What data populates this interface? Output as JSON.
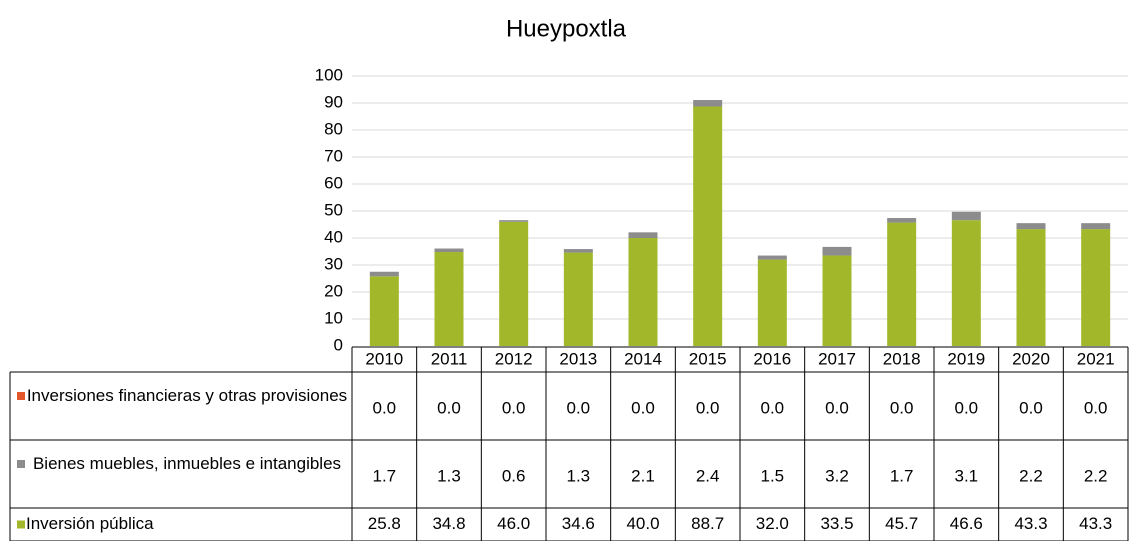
{
  "chart_data": {
    "type": "bar",
    "stacked": true,
    "title": "Hueypoxtla",
    "categories": [
      "2010",
      "2011",
      "2012",
      "2013",
      "2014",
      "2015",
      "2016",
      "2017",
      "2018",
      "2019",
      "2020",
      "2021"
    ],
    "series": [
      {
        "name": "Inversiones financieras y otras provisiones",
        "color": "#e2572b",
        "values": [
          0,
          0,
          0,
          0,
          0,
          0,
          0,
          0,
          0,
          0,
          0,
          0
        ],
        "value_labels": [
          "0.0",
          "0.0",
          "0.0",
          "0.0",
          "0.0",
          "0.0",
          "0.0",
          "0.0",
          "0.0",
          "0.0",
          "0.0",
          "0.0"
        ]
      },
      {
        "name": "Bienes muebles, inmuebles e intangibles",
        "color": "#8c8c8c",
        "values": [
          1.7,
          1.3,
          0.6,
          1.3,
          2.1,
          2.4,
          1.5,
          3.2,
          1.7,
          3.1,
          2.2,
          2.2
        ],
        "value_labels": [
          "1.7",
          "1.3",
          "0.6",
          "1.3",
          "2.1",
          "2.4",
          "1.5",
          "3.2",
          "1.7",
          "3.1",
          "2.2",
          "2.2"
        ]
      },
      {
        "name": "Inversión pública",
        "color": "#a2b82a",
        "values": [
          25.8,
          34.8,
          46,
          34.6,
          40,
          88.7,
          32,
          33.5,
          45.7,
          46.6,
          43.3,
          43.3
        ],
        "value_labels": [
          "25.8",
          "34.8",
          "46.0",
          "34.6",
          "40.0",
          "88.7",
          "32.0",
          "33.5",
          "45.7",
          "46.6",
          "43.3",
          "43.3"
        ]
      }
    ],
    "ylim": [
      0,
      100
    ],
    "yticks": [
      0,
      10,
      20,
      30,
      40,
      50,
      60,
      70,
      80,
      90,
      100
    ],
    "grid": true
  }
}
